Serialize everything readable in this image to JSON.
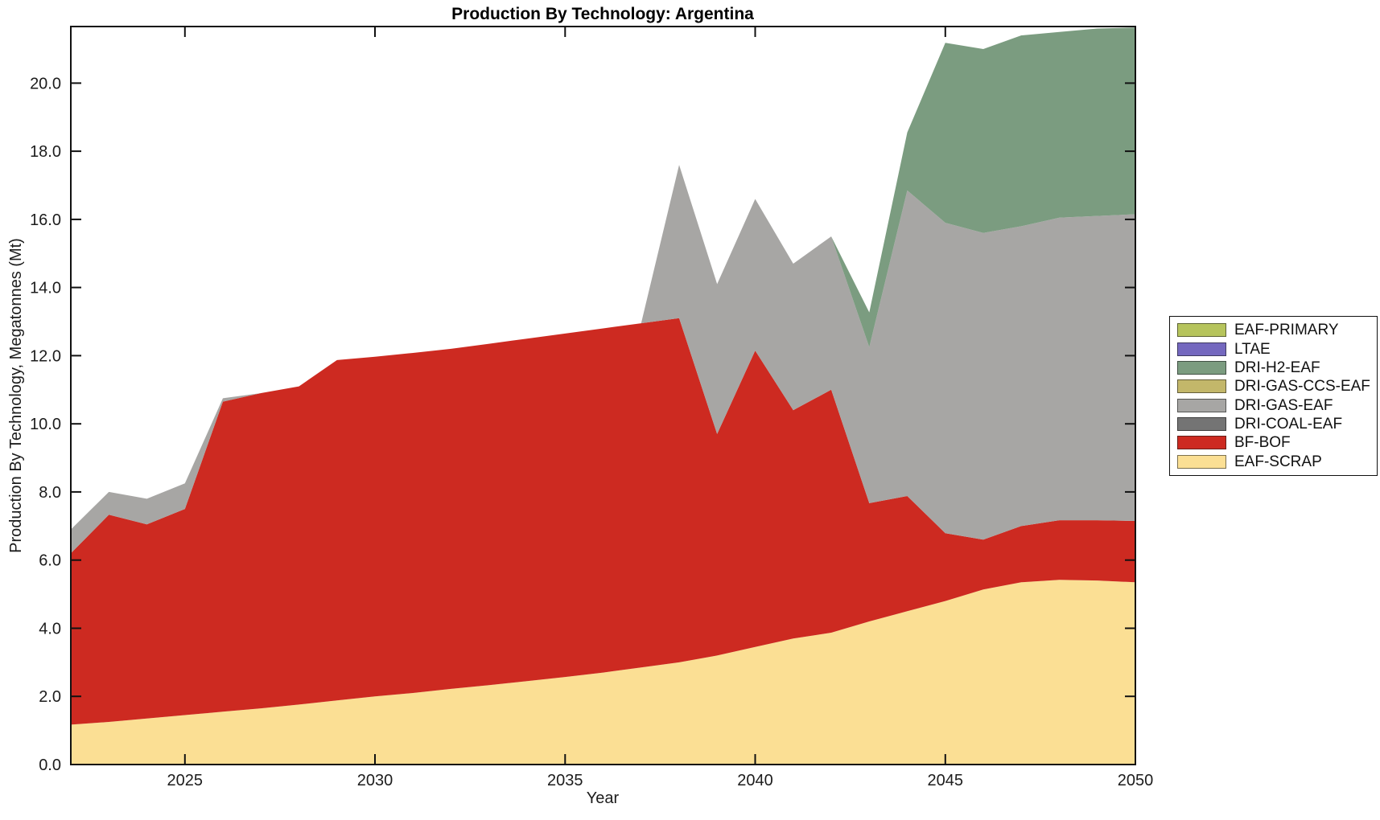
{
  "chart_data": {
    "type": "area",
    "stacked": true,
    "title": "Production By Technology: Argentina",
    "xlabel": "Year",
    "ylabel": "Production By Technology, Megatonnes (Mt)",
    "grid": false,
    "legend_position": "right-outside",
    "xlim": [
      2022,
      2050
    ],
    "ylim": [
      0,
      21.66
    ],
    "x_ticks": [
      2025,
      2030,
      2035,
      2040,
      2045,
      2050
    ],
    "y_ticks": [
      0,
      2,
      4,
      6,
      8,
      10,
      12,
      14,
      16,
      18,
      20
    ],
    "x": [
      2022,
      2023,
      2024,
      2025,
      2026,
      2027,
      2028,
      2029,
      2030,
      2031,
      2032,
      2033,
      2034,
      2035,
      2036,
      2037,
      2038,
      2039,
      2040,
      2041,
      2042,
      2043,
      2044,
      2045,
      2046,
      2047,
      2048,
      2049,
      2050
    ],
    "series": [
      {
        "name": "EAF-SCRAP",
        "color": "#fbdf94",
        "values": [
          1.17,
          1.25,
          1.35,
          1.45,
          1.55,
          1.65,
          1.76,
          1.88,
          2.0,
          2.1,
          2.22,
          2.33,
          2.45,
          2.57,
          2.7,
          2.85,
          3.0,
          3.2,
          3.45,
          3.7,
          3.87,
          4.2,
          4.5,
          4.8,
          5.14,
          5.35,
          5.42,
          5.4,
          5.35
        ]
      },
      {
        "name": "BF-BOF",
        "color": "#cd2a21",
        "values": [
          5.03,
          6.08,
          5.7,
          6.05,
          9.1,
          9.25,
          9.34,
          9.99,
          9.97,
          9.98,
          9.98,
          10.02,
          10.05,
          10.08,
          10.1,
          10.1,
          10.1,
          6.5,
          8.7,
          6.7,
          7.13,
          3.47,
          3.38,
          1.99,
          1.46,
          1.65,
          1.75,
          1.77,
          1.8
        ]
      },
      {
        "name": "DRI-COAL-EAF",
        "color": "#747474",
        "values": [
          0,
          0,
          0,
          0,
          0,
          0,
          0,
          0,
          0,
          0,
          0,
          0,
          0,
          0,
          0,
          0,
          0,
          0,
          0,
          0,
          0,
          0,
          0,
          0,
          0,
          0,
          0,
          0,
          0
        ]
      },
      {
        "name": "DRI-GAS-EAF",
        "color": "#a7a6a4",
        "values": [
          0.7,
          0.67,
          0.75,
          0.75,
          0.1,
          0,
          0,
          0,
          0,
          0,
          0,
          0,
          0,
          0,
          0,
          0,
          4.5,
          4.4,
          4.45,
          4.3,
          4.5,
          4.58,
          8.97,
          9.11,
          9.0,
          8.8,
          8.88,
          8.93,
          9.0
        ]
      },
      {
        "name": "DRI-GAS-CCS-EAF",
        "color": "#c3b76a",
        "values": [
          0,
          0,
          0,
          0,
          0,
          0,
          0,
          0,
          0,
          0,
          0,
          0,
          0,
          0,
          0,
          0,
          0,
          0,
          0,
          0,
          0,
          0,
          0,
          0,
          0,
          0,
          0,
          0,
          0
        ]
      },
      {
        "name": "DRI-H2-EAF",
        "color": "#7b9c80",
        "values": [
          0,
          0,
          0,
          0,
          0,
          0,
          0,
          0,
          0,
          0,
          0,
          0,
          0,
          0,
          0,
          0,
          0,
          0,
          0,
          0,
          0,
          1.02,
          1.7,
          5.28,
          5.4,
          5.6,
          5.45,
          5.5,
          5.48
        ]
      },
      {
        "name": "LTAE",
        "color": "#7468bf",
        "values": [
          0,
          0,
          0,
          0,
          0,
          0,
          0,
          0,
          0,
          0,
          0,
          0,
          0,
          0,
          0,
          0,
          0,
          0,
          0,
          0,
          0,
          0,
          0,
          0,
          0,
          0,
          0,
          0,
          0
        ]
      },
      {
        "name": "EAF-PRIMARY",
        "color": "#b6c45c",
        "values": [
          0,
          0,
          0,
          0,
          0,
          0,
          0,
          0,
          0,
          0,
          0,
          0,
          0,
          0,
          0,
          0,
          0,
          0,
          0,
          0,
          0,
          0,
          0,
          0,
          0,
          0,
          0,
          0,
          0
        ]
      }
    ],
    "legend_order_top_to_bottom": [
      "EAF-PRIMARY",
      "LTAE",
      "DRI-H2-EAF",
      "DRI-GAS-CCS-EAF",
      "DRI-GAS-EAF",
      "DRI-COAL-EAF",
      "BF-BOF",
      "EAF-SCRAP"
    ]
  },
  "style": {
    "axis_color": "#111111",
    "background_color": "#ffffff"
  }
}
